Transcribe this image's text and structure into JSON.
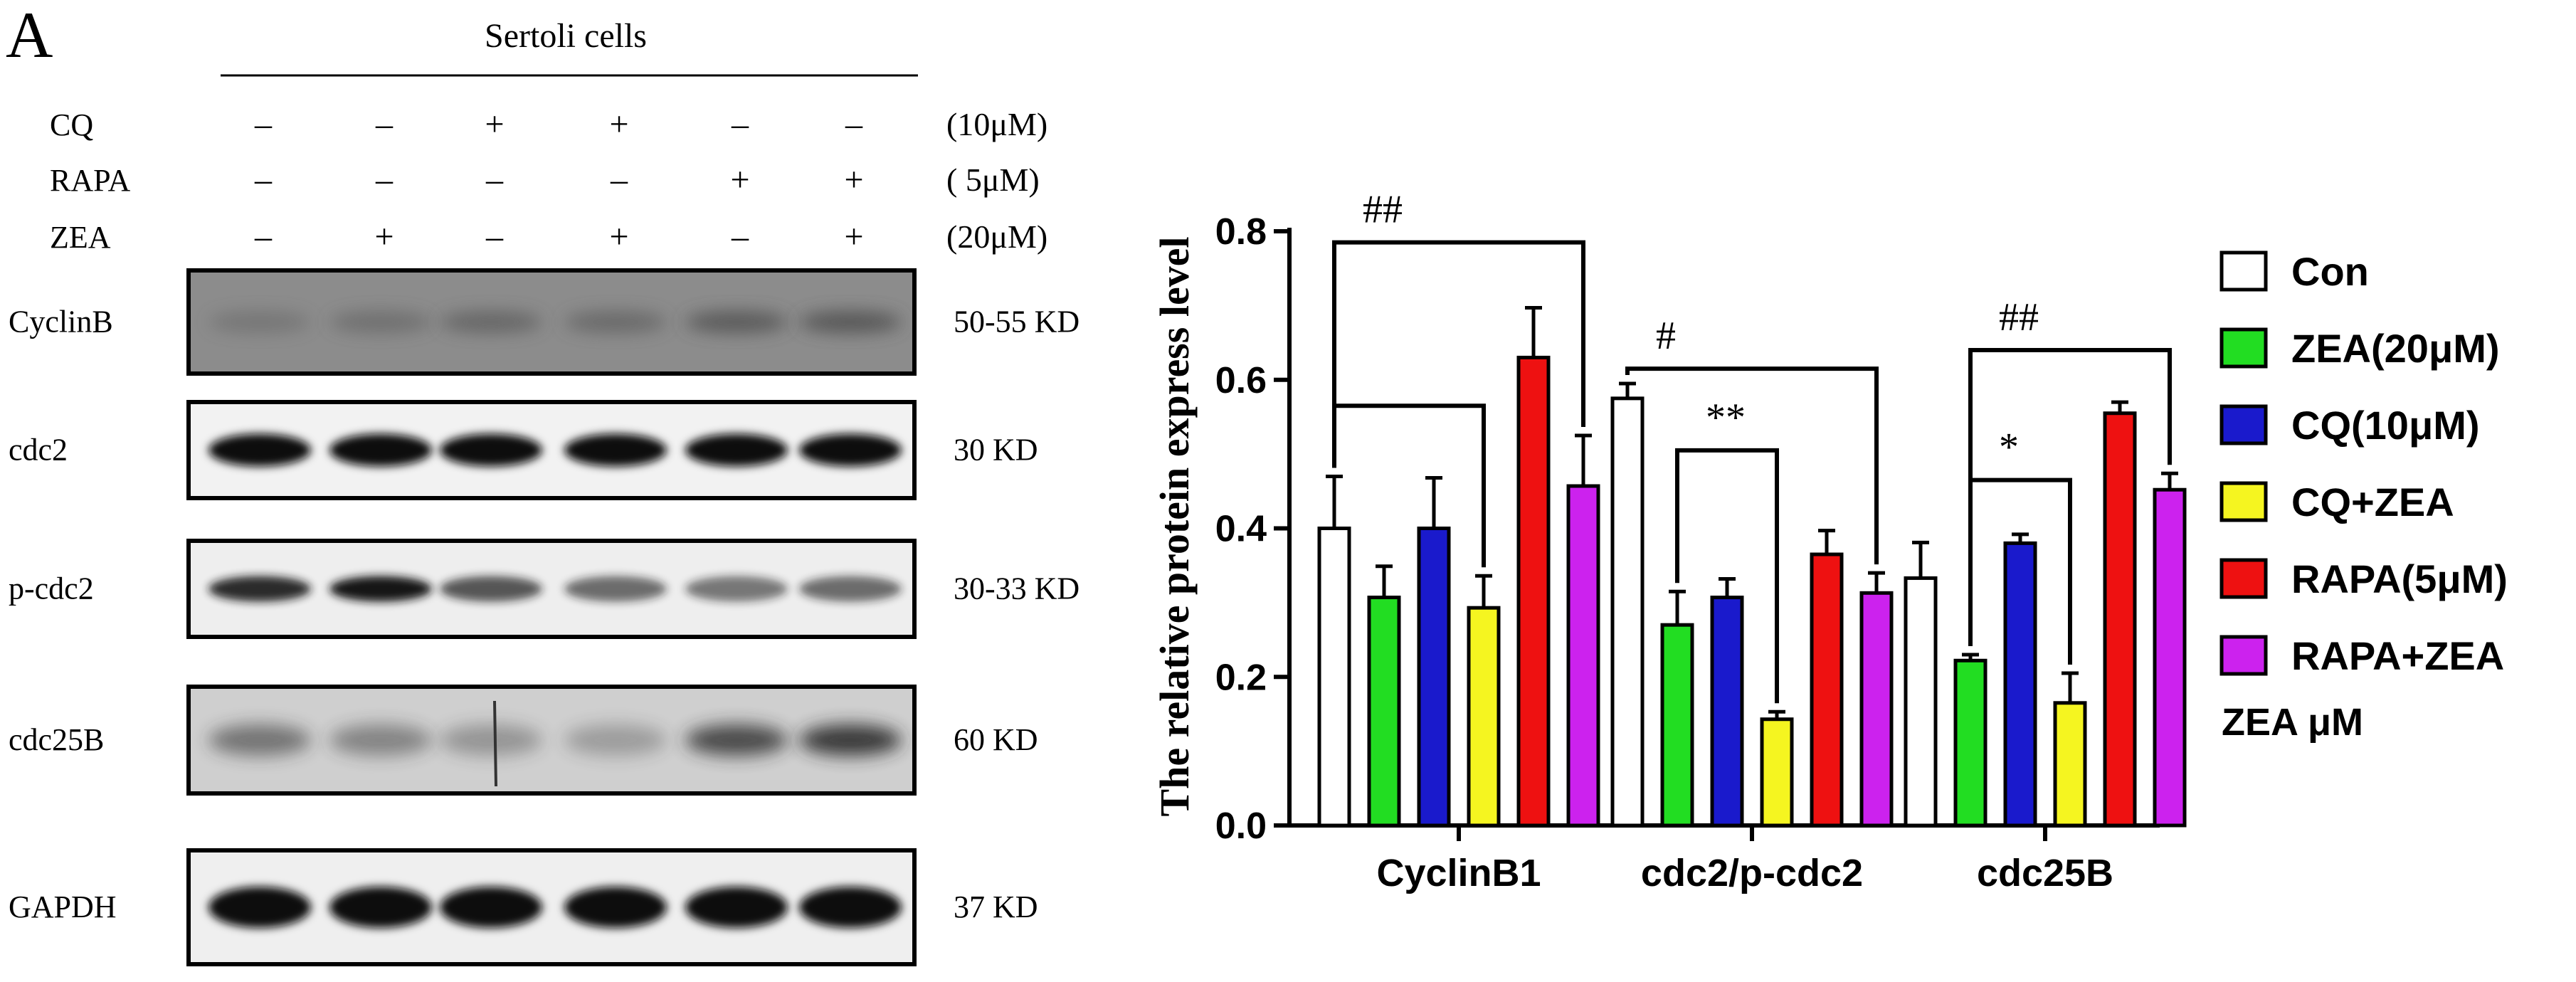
{
  "panel_label": "A",
  "blot": {
    "header": "Sertoli cells",
    "treatments": [
      {
        "name": "CQ",
        "signs": [
          "–",
          "–",
          "+",
          "+",
          "–",
          "–"
        ],
        "conc": "(10μM)"
      },
      {
        "name": "RAPA",
        "signs": [
          "–",
          "–",
          "–",
          "–",
          "+",
          "+"
        ],
        "conc": "(  5μM)"
      },
      {
        "name": "ZEA",
        "signs": [
          "–",
          "+",
          "–",
          "+",
          "–",
          "+"
        ],
        "conc": "(20μM)"
      }
    ],
    "bands": [
      {
        "name": "CyclinB",
        "kd": "50-55 KD"
      },
      {
        "name": "cdc2",
        "kd": "30 KD"
      },
      {
        "name": "p-cdc2",
        "kd": "30-33 KD"
      },
      {
        "name": "cdc25B",
        "kd": "60 KD"
      },
      {
        "name": "GAPDH",
        "kd": "37 KD"
      }
    ]
  },
  "chart_data": {
    "type": "bar",
    "title": "",
    "xlabel": "",
    "ylabel": "The relative protein express level",
    "ylim": [
      0,
      0.8
    ],
    "yticks": [
      "0.0",
      "0.2",
      "0.4",
      "0.6",
      "0.8"
    ],
    "categories": [
      "CyclinB1",
      "cdc2/p-cdc2",
      "cdc25B"
    ],
    "series": [
      {
        "name": "Con",
        "color": "#ffffff",
        "values": [
          0.4,
          0.575,
          0.333
        ],
        "errors": [
          0.07,
          0.02,
          0.048
        ]
      },
      {
        "name": "ZEA(20μM)",
        "color": "#22dd22",
        "values": [
          0.307,
          0.27,
          0.222
        ],
        "errors": [
          0.042,
          0.045,
          0.008
        ]
      },
      {
        "name": "CQ(10μM)",
        "color": "#1a1acc",
        "values": [
          0.4,
          0.307,
          0.38
        ],
        "errors": [
          0.068,
          0.025,
          0.012
        ]
      },
      {
        "name": "CQ+ZEA",
        "color": "#f5f520",
        "values": [
          0.293,
          0.143,
          0.165
        ],
        "errors": [
          0.043,
          0.01,
          0.04
        ]
      },
      {
        "name": "RAPA(5μM)",
        "color": "#ee1111",
        "values": [
          0.63,
          0.365,
          0.555
        ],
        "errors": [
          0.067,
          0.032,
          0.015
        ]
      },
      {
        "name": "RAPA+ZEA",
        "color": "#cc22ee",
        "values": [
          0.457,
          0.313,
          0.452
        ],
        "errors": [
          0.068,
          0.027,
          0.022
        ]
      }
    ],
    "annotations": [
      {
        "text": "##",
        "category": 0,
        "from_series": 0,
        "to_series": 5,
        "level": 0.785
      },
      {
        "text": "",
        "category": 0,
        "from_series": 0,
        "to_series": 3,
        "level": 0.565
      },
      {
        "text": "#",
        "category": 1,
        "from_series": 0,
        "to_series": 5,
        "level": 0.615
      },
      {
        "text": "**",
        "category": 1,
        "from_series": 1,
        "to_series": 3,
        "level": 0.505
      },
      {
        "text": "##",
        "category": 2,
        "from_series": 1,
        "to_series": 5,
        "level": 0.64
      },
      {
        "text": "*",
        "category": 2,
        "from_series": 1,
        "to_series": 3,
        "level": 0.465
      }
    ],
    "legend_note": "ZEA μM"
  }
}
